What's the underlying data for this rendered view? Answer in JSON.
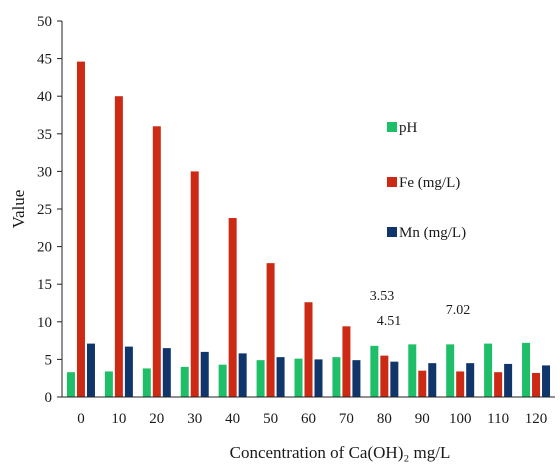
{
  "chart_data": {
    "type": "bar",
    "xlabel": "Concentration of Ca(OH)₂ mg/L",
    "ylabel": "Value",
    "ylim": [
      0,
      50
    ],
    "yticks": [
      "0",
      "5",
      "10",
      "15",
      "20",
      "25",
      "30",
      "35",
      "40",
      "45",
      "50"
    ],
    "grid": false,
    "legend_position": "right",
    "categories": [
      "0",
      "10",
      "20",
      "30",
      "40",
      "50",
      "60",
      "70",
      "80",
      "90",
      "100",
      "110",
      "120"
    ],
    "series": [
      {
        "name": "pH",
        "color": "#1fbf6a",
        "values": [
          3.3,
          3.4,
          3.8,
          4.0,
          4.3,
          4.9,
          5.1,
          5.3,
          6.8,
          7.0,
          7.0,
          7.1,
          7.2
        ]
      },
      {
        "name": "Fe (mg/L)",
        "color": "#cc2a14",
        "values": [
          44.6,
          40.0,
          36.0,
          30.0,
          23.8,
          17.8,
          12.6,
          9.4,
          5.5,
          3.5,
          3.4,
          3.3,
          3.2
        ]
      },
      {
        "name": "Mn (mg/L)",
        "color": "#10356b",
        "values": [
          7.1,
          6.7,
          6.5,
          6.0,
          5.8,
          5.3,
          5.0,
          4.9,
          4.7,
          4.5,
          4.5,
          4.4,
          4.2
        ]
      }
    ],
    "annotations": [
      "3.53",
      "4.51",
      "7.02"
    ]
  }
}
